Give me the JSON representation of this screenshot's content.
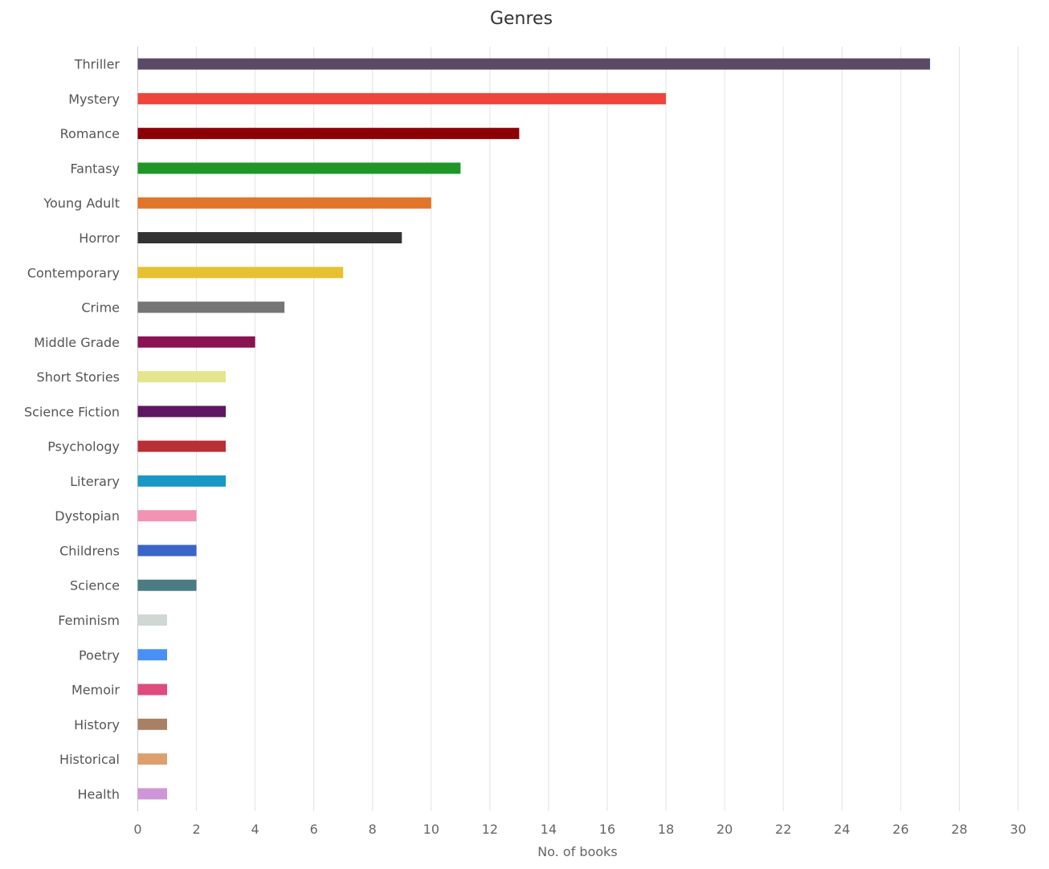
{
  "chart_data": {
    "type": "bar",
    "orientation": "horizontal",
    "title": "Genres",
    "xlabel": "No. of books",
    "ylabel": "",
    "xlim": [
      0,
      30
    ],
    "ticks": [
      "0",
      "2",
      "4",
      "6",
      "8",
      "10",
      "12",
      "14",
      "16",
      "18",
      "20",
      "22",
      "24",
      "26",
      "28",
      "30"
    ],
    "grid": true,
    "legend": "none",
    "categories": [
      "Thriller",
      "Mystery",
      "Romance",
      "Fantasy",
      "Young Adult",
      "Horror",
      "Contemporary",
      "Crime",
      "Middle Grade",
      "Short Stories",
      "Science Fiction",
      "Psychology",
      "Literary",
      "Dystopian",
      "Childrens",
      "Science",
      "Feminism",
      "Poetry",
      "Memoir",
      "History",
      "Historical",
      "Health"
    ],
    "values": [
      27,
      18,
      13,
      11,
      10,
      9,
      7,
      5,
      4,
      3,
      3,
      3,
      3,
      2,
      2,
      2,
      1,
      1,
      1,
      1,
      1,
      1
    ],
    "colors": [
      "#5b4a66",
      "#f0453c",
      "#8b0007",
      "#1f9626",
      "#e27527",
      "#333333",
      "#e8c132",
      "#757575",
      "#8a1352",
      "#e4e68d",
      "#601660",
      "#b82f35",
      "#1b97c7",
      "#f293b4",
      "#3a66c9",
      "#4a7c82",
      "#d0d8d4",
      "#4a8ff5",
      "#df4b7e",
      "#a88063",
      "#dc9f6e",
      "#ce96d8"
    ]
  }
}
